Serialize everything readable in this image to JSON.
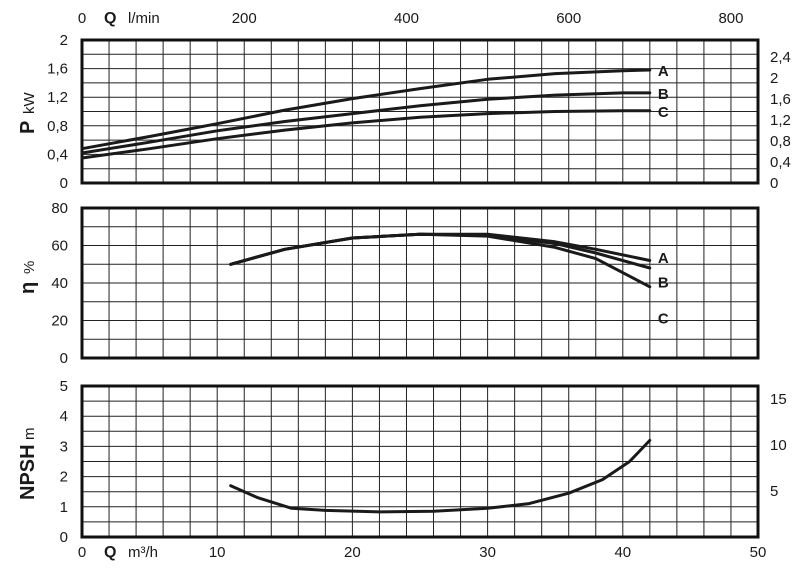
{
  "chart_data": {
    "type": "line",
    "x_axis": {
      "label": "Q",
      "unit": "m³/h",
      "range": [
        0,
        50
      ],
      "ticks": [
        0,
        10,
        20,
        30,
        40,
        50
      ],
      "tick_labels": [
        "0",
        "10",
        "20",
        "30",
        "40",
        "50"
      ]
    },
    "x_axis_top": {
      "label": "Q",
      "unit": "l/min",
      "range": [
        0,
        833.3
      ],
      "ticks": [
        0,
        200,
        400,
        600,
        800
      ],
      "tick_labels": [
        "0",
        "200",
        "400",
        "600",
        "800"
      ]
    },
    "panels": [
      {
        "id": "power",
        "ylabel": "P",
        "yunit": "kW",
        "ylim": [
          0,
          2
        ],
        "yticks": [
          0,
          0.4,
          0.8,
          1.2,
          1.6,
          2
        ],
        "ytick_labels": [
          "0",
          "0,4",
          "0,8",
          "1,2",
          "1,6",
          "2"
        ],
        "right_ytick_labels": [
          "0",
          "0,4",
          "0,8",
          "1,2",
          "1,6",
          "2",
          "2,4"
        ],
        "right_ylim": [
          0,
          2.72
        ],
        "right_yticks": [
          0,
          0.4,
          0.8,
          1.2,
          1.6,
          2,
          2.4
        ],
        "grid": true,
        "series": [
          {
            "name": "A",
            "x": [
              0,
              5,
              10,
              15,
              20,
              25,
              30,
              35,
              40,
              42
            ],
            "y": [
              0.48,
              0.65,
              0.83,
              1.02,
              1.18,
              1.32,
              1.45,
              1.53,
              1.57,
              1.58
            ]
          },
          {
            "name": "B",
            "x": [
              0,
              5,
              10,
              15,
              20,
              25,
              30,
              35,
              40,
              42
            ],
            "y": [
              0.42,
              0.57,
              0.73,
              0.86,
              0.97,
              1.08,
              1.17,
              1.23,
              1.26,
              1.26
            ]
          },
          {
            "name": "C",
            "x": [
              0,
              5,
              10,
              15,
              20,
              25,
              30,
              35,
              40,
              42
            ],
            "y": [
              0.35,
              0.48,
              0.62,
              0.74,
              0.84,
              0.92,
              0.97,
              1.0,
              1.01,
              1.01
            ]
          }
        ]
      },
      {
        "id": "efficiency",
        "ylabel": "η",
        "yunit": "%",
        "ylim": [
          0,
          80
        ],
        "yticks": [
          0,
          20,
          40,
          60,
          80
        ],
        "ytick_labels": [
          "0",
          "20",
          "40",
          "60",
          "80"
        ],
        "grid": true,
        "series": [
          {
            "name": "A",
            "x": [
              11,
              15,
              20,
              25,
              30,
              35,
              38,
              42
            ],
            "y": [
              50,
              58,
              64,
              66,
              66,
              62,
              58,
              52
            ]
          },
          {
            "name": "B",
            "x": [
              11,
              15,
              20,
              25,
              30,
              35,
              38,
              42
            ],
            "y": [
              50,
              58,
              64,
              66,
              65.5,
              61,
              56,
              48
            ]
          },
          {
            "name": "C",
            "x": [
              11,
              15,
              20,
              25,
              30,
              35,
              38,
              42
            ],
            "y": [
              50,
              58,
              64,
              66,
              65,
              59,
              53,
              38
            ]
          }
        ]
      },
      {
        "id": "npsh",
        "ylabel": "NPSH",
        "yunit": "m",
        "ylim": [
          0,
          5
        ],
        "yticks": [
          0,
          1,
          2,
          3,
          4,
          5
        ],
        "ytick_labels": [
          "0",
          "1",
          "2",
          "3",
          "4",
          "5"
        ],
        "right_ytick_labels": [
          "5",
          "10",
          "15"
        ],
        "right_ylim": [
          0,
          16.4
        ],
        "right_yticks": [
          5,
          10,
          15
        ],
        "grid": true,
        "series": [
          {
            "name": "",
            "x": [
              11,
              13,
              15.5,
              18,
              22,
              26,
              30,
              33,
              36,
              38.5,
              40.5,
              42
            ],
            "y": [
              1.7,
              1.3,
              0.95,
              0.88,
              0.83,
              0.85,
              0.95,
              1.1,
              1.45,
              1.9,
              2.5,
              3.2
            ]
          }
        ]
      }
    ]
  }
}
